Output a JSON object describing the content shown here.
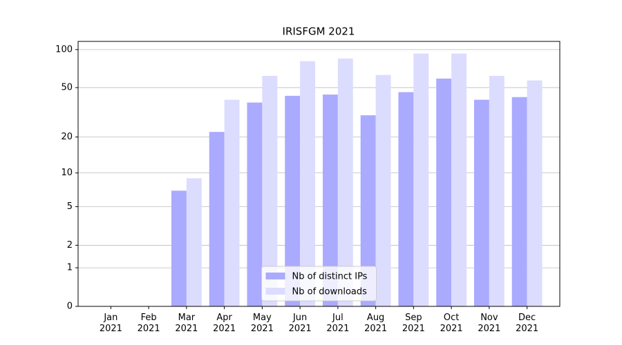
{
  "chart_data": {
    "type": "bar",
    "title": "IRISFGM 2021",
    "categories": [
      "Jan 2021",
      "Feb 2021",
      "Mar 2021",
      "Apr 2021",
      "May 2021",
      "Jun 2021",
      "Jul 2021",
      "Aug 2021",
      "Sep 2021",
      "Oct 2021",
      "Nov 2021",
      "Dec 2021"
    ],
    "series": [
      {
        "name": "Nb of distinct IPs",
        "color": "#aaaaff",
        "values": [
          0,
          0,
          7,
          22,
          38,
          43,
          44,
          30,
          46,
          59,
          40,
          42
        ]
      },
      {
        "name": "Nb of downloads",
        "color": "#dcdcff",
        "values": [
          0,
          0,
          9,
          40,
          62,
          81,
          85,
          63,
          93,
          93,
          62,
          57
        ]
      }
    ],
    "yscale": "log1p",
    "ylim": [
      0,
      116
    ],
    "yticks": [
      0,
      1,
      2,
      5,
      10,
      20,
      50,
      100
    ],
    "grid": true,
    "legend": "lower center"
  }
}
